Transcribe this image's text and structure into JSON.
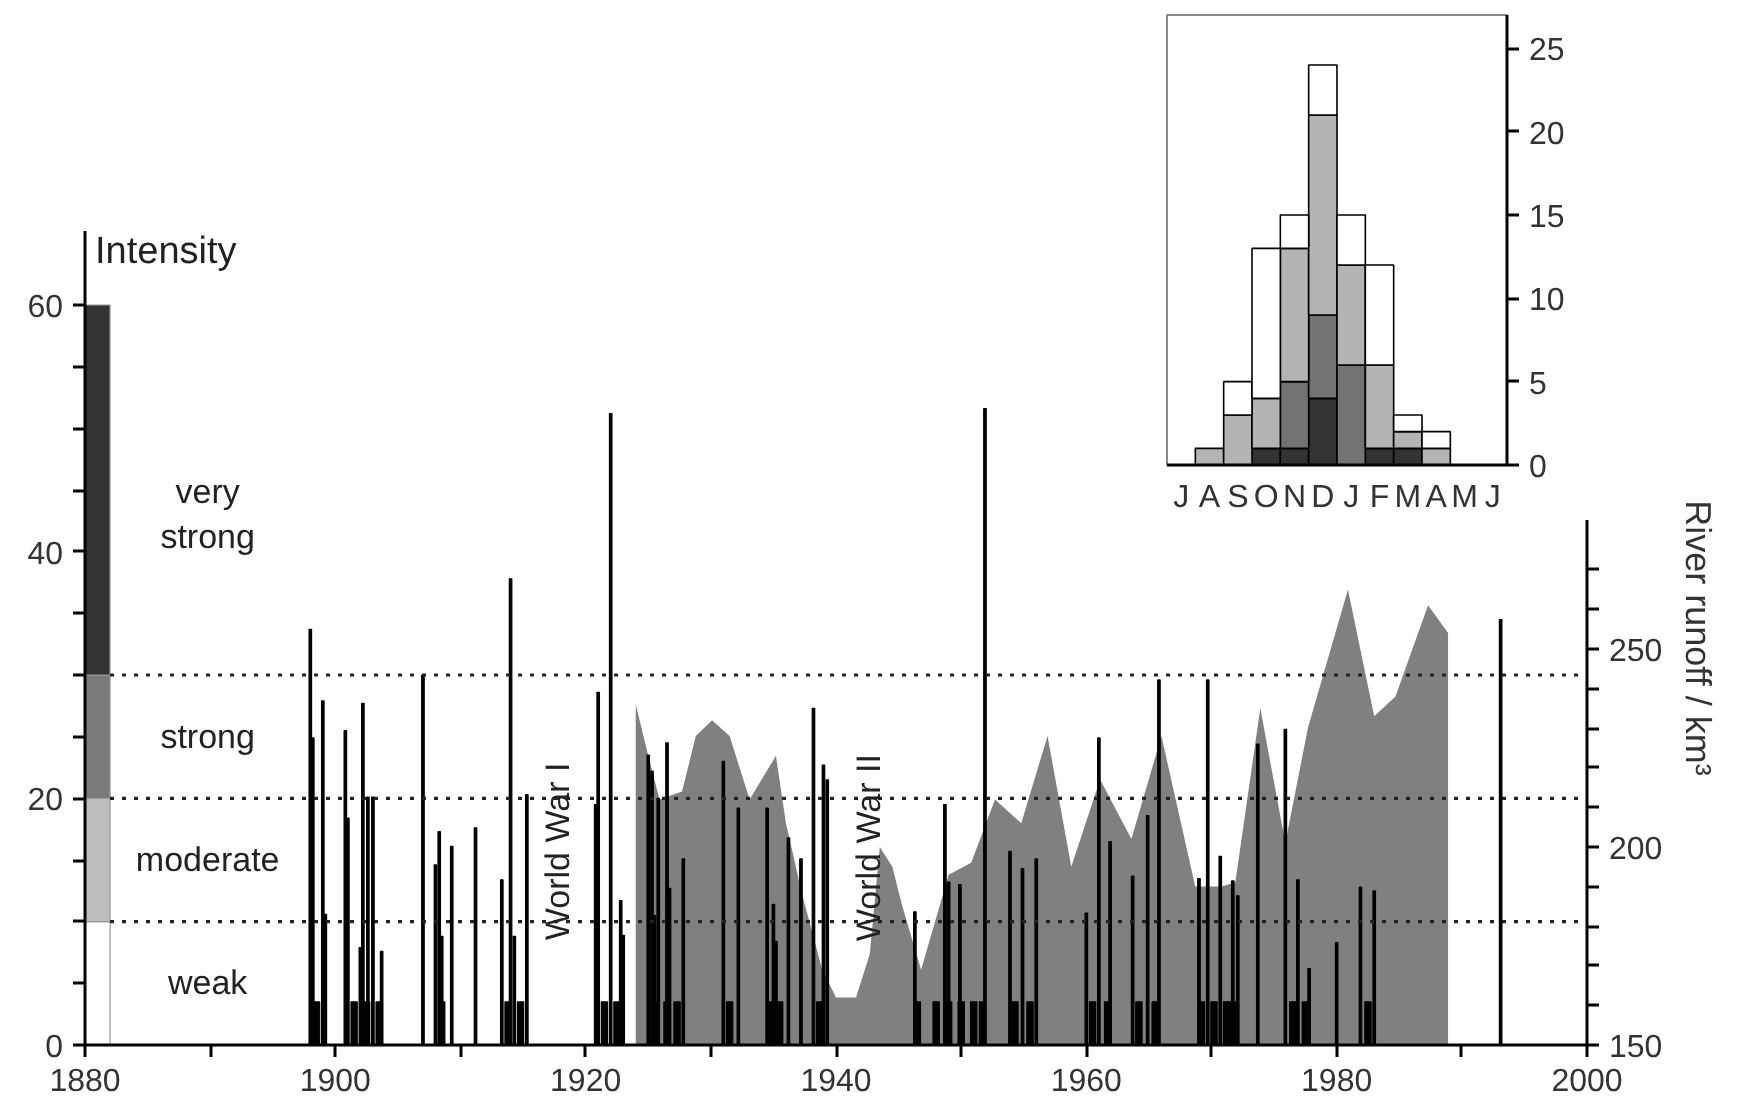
{
  "chart_data": [
    {
      "type": "bar",
      "xlim": [
        1880,
        2000
      ],
      "ylim": [
        0,
        66
      ],
      "y2lim": [
        150,
        355.5
      ],
      "y2label": "River runoff / km³",
      "xticks": [
        1880,
        {
          "value": 1890,
          "label": null
        },
        1900,
        {
          "value": 1910,
          "label": null
        },
        1920,
        {
          "value": 1930,
          "label": null
        },
        1940,
        {
          "value": 1950,
          "label": null
        },
        1960,
        {
          "value": 1970,
          "label": null
        },
        1980,
        {
          "value": 1990,
          "label": null
        },
        2000
      ],
      "yticks": [
        0,
        {
          "value": 5,
          "label": null
        },
        {
          "value": 10,
          "label": null
        },
        {
          "value": 15,
          "label": null
        },
        20,
        {
          "value": 25,
          "label": null
        },
        {
          "value": 30,
          "label": null
        },
        {
          "value": 35,
          "label": null
        },
        40,
        {
          "value": 45,
          "label": null
        },
        {
          "value": 50,
          "label": null
        },
        {
          "value": 55,
          "label": null
        },
        60
      ],
      "y2ticks": [
        150,
        {
          "value": 160,
          "label": null
        },
        {
          "value": 170,
          "label": null
        },
        {
          "value": 180,
          "label": null
        },
        {
          "value": 190,
          "label": null
        },
        200,
        {
          "value": 210,
          "label": null
        },
        {
          "value": 220,
          "label": null
        },
        {
          "value": 230,
          "label": null
        },
        {
          "value": 240,
          "label": null
        },
        250,
        {
          "value": 260,
          "label": null
        },
        {
          "value": 270,
          "label": null
        }
      ],
      "ref_lines": [
        {
          "axis": "y",
          "value": 10,
          "line_style": "dotted"
        },
        {
          "axis": "y",
          "value": 20,
          "line_style": "dotted"
        },
        {
          "axis": "y",
          "value": 30,
          "line_style": "dotted"
        }
      ],
      "annotations": [
        "Intensity",
        "very\nstrong",
        "strong",
        "moderate",
        "weak",
        "World War I",
        "World War II"
      ],
      "series": [
        {
          "type": "area",
          "axis": "y2",
          "color": "#808080",
          "x": [
            1924.0,
            1925.0,
            1925.9,
            1927.7,
            1928.8,
            1930.1,
            1931.5,
            1933.1,
            1935.2,
            1936.0,
            1937.3,
            1938.9,
            1940.0,
            1941.6,
            1942.7,
            1943.5,
            1944.5,
            1945.3,
            1946.8,
            1949.0,
            1950.8,
            1952.7,
            1954.8,
            1956.9,
            1958.8,
            1961.1,
            1963.6,
            1966.0,
            1968.7,
            1970.8,
            1971.9,
            1973.9,
            1975.9,
            1977.7,
            1980.9,
            1983.0,
            1984.7,
            1987.3,
            1988.9
          ],
          "values": [
            236,
            223,
            212,
            214,
            228,
            232,
            228,
            212,
            223,
            206,
            188,
            169,
            162,
            162,
            173,
            200,
            195,
            185,
            169,
            193,
            196,
            212,
            206,
            228,
            195,
            217,
            202,
            228,
            190,
            190,
            191,
            235,
            201,
            230,
            265,
            233,
            238,
            261,
            254
          ]
        },
        {
          "type": "bar",
          "color": "#ffffff",
          "x": [
            1881
          ],
          "base": [
            0
          ],
          "values": [
            10
          ]
        },
        {
          "type": "bar",
          "color": "#bdbdbd",
          "x": [
            1881
          ],
          "base": [
            10
          ],
          "values": [
            10
          ]
        },
        {
          "type": "bar",
          "color": "#7a7a7a",
          "x": [
            1881
          ],
          "base": [
            20
          ],
          "values": [
            10
          ]
        },
        {
          "type": "bar",
          "color": "#333333",
          "x": [
            1881
          ],
          "base": [
            30
          ],
          "values": [
            30
          ]
        },
        {
          "type": "bar",
          "color": "#000000",
          "x": [
            1898.0,
            1898.2,
            1899.0,
            1899.2,
            1900.8,
            1901.0,
            1902.0,
            1902.2,
            1902.6,
            1903.0,
            1903.7,
            1907.0,
            1908.0,
            1908.3,
            1908.5,
            1909.3,
            1911.2,
            1913.3,
            1914.0,
            1914.3,
            1915.3,
            1920.8,
            1921.0,
            1922.0,
            1922.8,
            1923.0,
            1925.0,
            1925.3,
            1925.5,
            1925.8,
            1926.5,
            1926.7,
            1927.8,
            1931.0,
            1932.2,
            1934.5,
            1935.0,
            1935.2,
            1936.2,
            1937.2,
            1938.2,
            1939.0,
            1939.3,
            1946.3,
            1948.7,
            1949.0,
            1949.9,
            1951.9,
            1953.9,
            1954.9,
            1956.0,
            1960.0,
            1961.0,
            1961.9,
            1963.7,
            1964.9,
            1965.8,
            1969.0,
            1969.7,
            1970.7,
            1971.7,
            1972.1,
            1973.7,
            1975.9,
            1976.9,
            1977.8,
            1980.0,
            1981.9,
            1983.0,
            1993.1
          ],
          "values": [
            33.7,
            24.9,
            27.9,
            10.6,
            25.5,
            18.4,
            7.9,
            27.7,
            20.1,
            20.1,
            7.6,
            30.0,
            14.6,
            17.3,
            8.8,
            16.1,
            17.6,
            13.4,
            37.8,
            8.8,
            20.3,
            19.5,
            28.6,
            51.2,
            11.7,
            8.9,
            23.5,
            22.2,
            10.5,
            20,
            24.5,
            12.7,
            15.1,
            23.0,
            19.2,
            19.2,
            11.4,
            8.4,
            16.8,
            15.1,
            27.3,
            22.7,
            21.5,
            10.8,
            19.5,
            13.2,
            13.0,
            51.6,
            15.7,
            14.3,
            15.1,
            10.7,
            24.9,
            16.5,
            13.7,
            18.6,
            29.6,
            13.5,
            29.6,
            15.3,
            13.3,
            12.1,
            24.4,
            25.6,
            13.4,
            6.2,
            8.3,
            12.8,
            12.5,
            34.5
          ]
        },
        {
          "type": "bar",
          "color": "#000000",
          "x": [
            1898.5,
            1901.5,
            1902.5,
            1903.5,
            1908.5,
            1913.8,
            1914.8,
            1921.5,
            1922.5,
            1925.5,
            1926.5,
            1927.3,
            1931.5,
            1934.8,
            1935.5,
            1938.7,
            1946.5,
            1948.0,
            1949.0,
            1950.0,
            1951.0,
            1951.7,
            1954.3,
            1955.5,
            1960.5,
            1961.7,
            1964.2,
            1965.5,
            1969.2,
            1970.2,
            1971.2,
            1971.7,
            1976.5,
            1977.5,
            1982.5
          ],
          "values": [
            3.5,
            3.5,
            3.5,
            3.5,
            3.5,
            3.5,
            3.5,
            3.5,
            3.5,
            3.5,
            3.5,
            3.5,
            3.5,
            3.5,
            3.5,
            3.5,
            3.5,
            3.5,
            3.5,
            3.5,
            3.5,
            3.5,
            3.5,
            3.5,
            3.5,
            3.5,
            3.5,
            3.5,
            3.5,
            3.5,
            3.5,
            3.5,
            3.5,
            3.5,
            3.5
          ]
        }
      ]
    },
    {
      "type": "bar",
      "stacked": true,
      "categories": [
        "J",
        "A",
        "S",
        "O",
        "N",
        "D",
        "J",
        "F",
        "M",
        "A",
        "M",
        "J"
      ],
      "ylim": [
        0,
        27
      ],
      "yticks": [
        0,
        5,
        10,
        15,
        20,
        25
      ],
      "series": [
        {
          "color": "#333333",
          "values": [
            0,
            0,
            0,
            1,
            1,
            4,
            0,
            1,
            1,
            0,
            0,
            0
          ]
        },
        {
          "color": "#737373",
          "values": [
            0,
            0,
            0,
            0,
            4,
            5,
            6,
            0,
            0,
            0,
            0,
            0
          ]
        },
        {
          "color": "#b4b4b4",
          "values": [
            0,
            1,
            3,
            3,
            8,
            12,
            6,
            5,
            1,
            1,
            0,
            0
          ]
        },
        {
          "color": "#ffffff",
          "values": [
            0,
            0,
            2,
            9,
            2,
            3,
            3,
            6,
            1,
            1,
            0,
            0
          ]
        }
      ]
    }
  ]
}
